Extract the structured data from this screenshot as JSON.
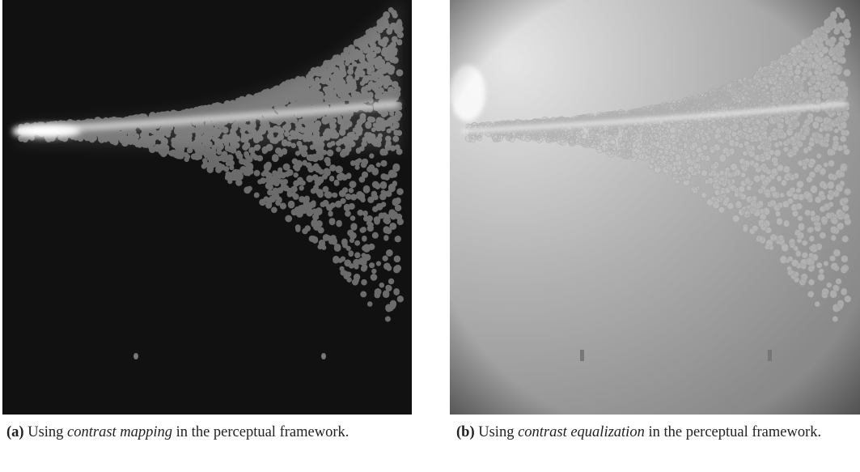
{
  "subfigures": [
    {
      "label": "(a)",
      "before": "Using",
      "emphasis": "contrast mapping",
      "after": "in the perceptual framework."
    },
    {
      "label": "(b)",
      "before": "Using",
      "emphasis": "contrast equalization",
      "after": "in the perceptual framework."
    }
  ]
}
